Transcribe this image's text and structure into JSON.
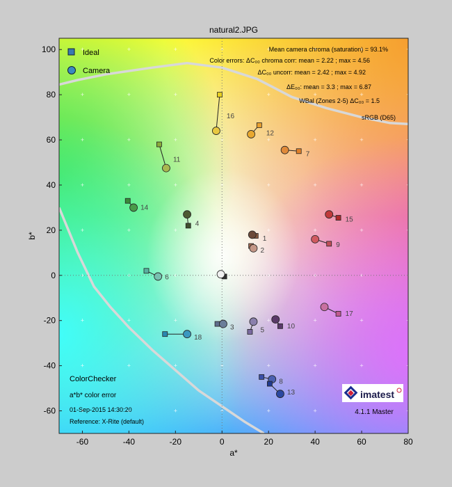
{
  "chart_data": {
    "type": "scatter",
    "title": "natural2.JPG",
    "xlabel": "a*",
    "ylabel": "b*",
    "xlim": [
      -70,
      80
    ],
    "ylim": [
      -70,
      105
    ],
    "xticks": [
      -60,
      -40,
      -20,
      0,
      20,
      40,
      60,
      80
    ],
    "yticks": [
      -60,
      -40,
      -20,
      0,
      20,
      40,
      60,
      80,
      100
    ],
    "grid": true,
    "legend": {
      "placement": "top-left",
      "ideal_label": "Ideal",
      "camera_label": "Camera"
    },
    "stats": [
      "Mean camera chroma (saturation) = 93.1%",
      "Color errors:  ΔC₀₀ chroma corr: mean = 2.22 ; max = 4.56",
      "ΔC₀₀ uncorr: mean = 2.42 ; max = 4.92",
      "ΔE₀₀: mean = 3.3 ; max = 6.87",
      "WBal (Zones 2-5)   ΔC₀₀ = 1.5",
      "sRGB (D65)"
    ],
    "footer": {
      "chart_name": "ColorChecker",
      "subtitle": "a*b* color error",
      "date": "01-Sep-2015 14:30:20",
      "reference": "Reference: X-Rite (default)",
      "brand": "imatest",
      "version": "4.1.1 Master"
    },
    "gamut_boundary": {
      "upper": [
        [
          -70,
          84.5
        ],
        [
          -62,
          86.5
        ],
        [
          -50,
          89
        ],
        [
          -30,
          92
        ],
        [
          -15,
          94
        ],
        [
          0,
          92
        ],
        [
          15,
          87
        ],
        [
          30,
          79
        ],
        [
          45,
          74
        ],
        [
          60,
          70
        ],
        [
          72,
          67.5
        ],
        [
          80,
          67
        ]
      ],
      "lower": [
        [
          -70,
          30
        ],
        [
          -62,
          10
        ],
        [
          -55,
          -5
        ],
        [
          -48,
          -14
        ],
        [
          -40,
          -23
        ],
        [
          -30,
          -33
        ],
        [
          -20,
          -42
        ],
        [
          -10,
          -51
        ],
        [
          0,
          -58
        ],
        [
          10,
          -65
        ],
        [
          18,
          -70
        ]
      ]
    },
    "patches": [
      {
        "id": "1",
        "ideal": [
          14.5,
          17.5
        ],
        "camera": [
          13,
          18
        ],
        "ideal_color": "#8a5a40",
        "camera_color": "#6b4a3a"
      },
      {
        "id": "2",
        "ideal": [
          12.5,
          13
        ],
        "camera": [
          13.5,
          12
        ],
        "ideal_color": "#a06850",
        "camera_color": "#c49686"
      },
      {
        "id": "3",
        "ideal": [
          -2,
          -21.5
        ],
        "camera": [
          0.5,
          -21.5
        ],
        "ideal_color": "#5f6e8c",
        "camera_color": "#6a7e99"
      },
      {
        "id": "4",
        "ideal": [
          -14.5,
          22
        ],
        "camera": [
          -15,
          27
        ],
        "ideal_color": "#404f2e",
        "camera_color": "#4d5a33"
      },
      {
        "id": "5",
        "ideal": [
          12,
          -25
        ],
        "camera": [
          13.5,
          -20.5
        ],
        "ideal_color": "#7a6aa0",
        "camera_color": "#8a80ac"
      },
      {
        "id": "6",
        "ideal": [
          -32.5,
          2
        ],
        "camera": [
          -27.5,
          -0.5
        ],
        "ideal_color": "#5ab0a0",
        "camera_color": "#78c0b0"
      },
      {
        "id": "7",
        "ideal": [
          33,
          55
        ],
        "camera": [
          27,
          55.5
        ],
        "ideal_color": "#e0802a",
        "camera_color": "#e08a3a"
      },
      {
        "id": "8",
        "ideal": [
          17,
          -45
        ],
        "camera": [
          21.5,
          -46
        ],
        "ideal_color": "#3a50a8",
        "camera_color": "#4a60b0"
      },
      {
        "id": "9",
        "ideal": [
          46,
          14
        ],
        "camera": [
          40,
          16
        ],
        "ideal_color": "#c0505a",
        "camera_color": "#d05a60"
      },
      {
        "id": "10",
        "ideal": [
          25,
          -22.5
        ],
        "camera": [
          23,
          -19.5
        ],
        "ideal_color": "#5a3a6a",
        "camera_color": "#5a3a68"
      },
      {
        "id": "11",
        "ideal": [
          -27,
          58
        ],
        "camera": [
          -24,
          47.5
        ],
        "ideal_color": "#8aaa3a",
        "camera_color": "#a8b850"
      },
      {
        "id": "12",
        "ideal": [
          16,
          66.5
        ],
        "camera": [
          12.5,
          62.5
        ],
        "ideal_color": "#e8a030",
        "camera_color": "#e8a830"
      },
      {
        "id": "13",
        "ideal": [
          20.5,
          -48
        ],
        "camera": [
          25,
          -52.5
        ],
        "ideal_color": "#203a90",
        "camera_color": "#2a48a0"
      },
      {
        "id": "14",
        "ideal": [
          -40.5,
          33
        ],
        "camera": [
          -38,
          30
        ],
        "ideal_color": "#3a8a3a",
        "camera_color": "#4a9a4a"
      },
      {
        "id": "15",
        "ideal": [
          50,
          25.5
        ],
        "camera": [
          46,
          27
        ],
        "ideal_color": "#b02a2a",
        "camera_color": "#c03a3a"
      },
      {
        "id": "16",
        "ideal": [
          -1,
          80
        ],
        "camera": [
          -2.5,
          64
        ],
        "ideal_color": "#e8d020",
        "camera_color": "#e8c840"
      },
      {
        "id": "17",
        "ideal": [
          50,
          -17
        ],
        "camera": [
          44,
          -14
        ],
        "ideal_color": "#c05a90",
        "camera_color": "#c870a0"
      },
      {
        "id": "18",
        "ideal": [
          -24.5,
          -26
        ],
        "camera": [
          -15,
          -26
        ],
        "ideal_color": "#2a88b0",
        "camera_color": "#3a98c0"
      },
      {
        "id": "",
        "ideal": [
          1,
          -0.5
        ],
        "camera": [
          -0.5,
          0.5
        ],
        "ideal_color": "#303030",
        "camera_color": "#f0f0f0"
      }
    ]
  }
}
